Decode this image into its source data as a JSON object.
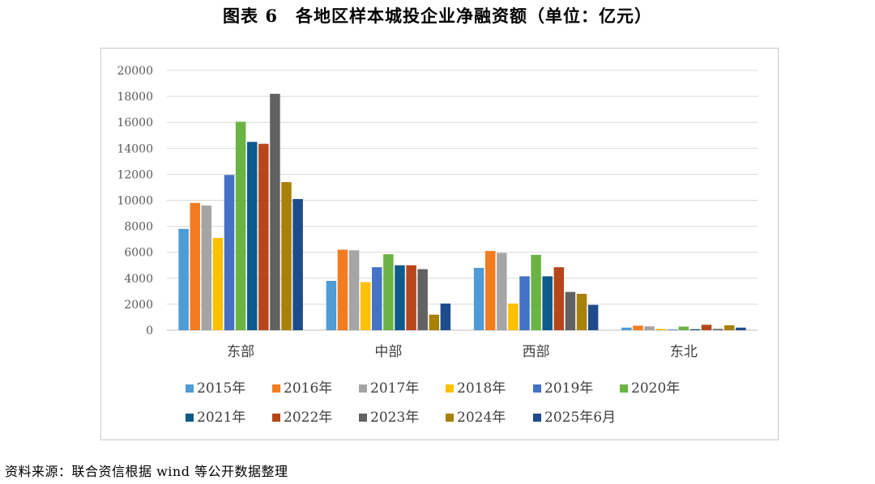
{
  "figure": {
    "number": "图表 6",
    "title": "各地区样本城投企业净融资额（单位：亿元）",
    "source": "资料来源：联合资信根据 wind 等公开数据整理"
  },
  "chart_data": {
    "type": "bar",
    "title": "各地区样本城投企业净融资额（单位：亿元）",
    "xlabel": "",
    "ylabel": "",
    "ylim": [
      0,
      20000
    ],
    "yticks": [
      0,
      2000,
      4000,
      6000,
      8000,
      10000,
      12000,
      14000,
      16000,
      18000,
      20000
    ],
    "grid": true,
    "legend_position": "bottom",
    "categories": [
      "东部",
      "中部",
      "西部",
      "东北"
    ],
    "series": [
      {
        "name": "2015年",
        "color": "#4E9BD6",
        "values": [
          7800,
          3800,
          4800,
          200
        ]
      },
      {
        "name": "2016年",
        "color": "#F47C20",
        "values": [
          9800,
          6200,
          6100,
          350
        ]
      },
      {
        "name": "2017年",
        "color": "#A5A5A5",
        "values": [
          9600,
          6150,
          5950,
          300
        ]
      },
      {
        "name": "2018年",
        "color": "#FFC000",
        "values": [
          7100,
          3700,
          2050,
          100
        ]
      },
      {
        "name": "2019年",
        "color": "#4472C4",
        "values": [
          11950,
          4850,
          4150,
          50
        ]
      },
      {
        "name": "2020年",
        "color": "#6BB444",
        "values": [
          16050,
          5850,
          5800,
          280
        ]
      },
      {
        "name": "2021年",
        "color": "#0D5A8C",
        "values": [
          14500,
          5000,
          4150,
          80
        ]
      },
      {
        "name": "2022年",
        "color": "#B7471B",
        "values": [
          14350,
          5000,
          4850,
          420
        ]
      },
      {
        "name": "2023年",
        "color": "#626262",
        "values": [
          18200,
          4700,
          2950,
          100
        ]
      },
      {
        "name": "2024年",
        "color": "#A88108",
        "values": [
          11400,
          1200,
          2800,
          380
        ]
      },
      {
        "name": "2025年6月",
        "color": "#1E4B8C",
        "values": [
          10100,
          2050,
          1950,
          200
        ]
      }
    ]
  }
}
